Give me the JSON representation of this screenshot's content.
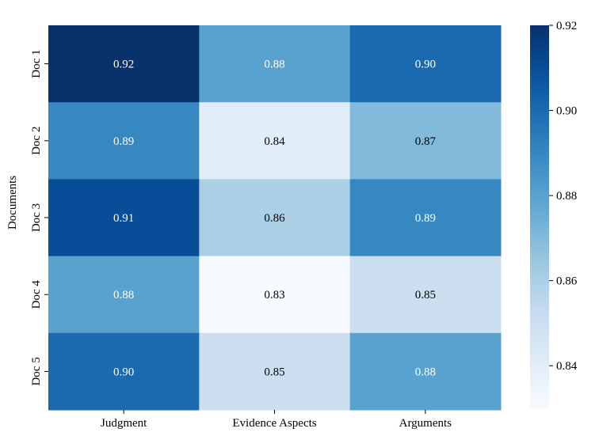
{
  "chart_data": {
    "type": "heatmap",
    "title": "",
    "xlabel": "",
    "ylabel": "Documents",
    "columns": [
      "Judgment",
      "Evidence Aspects",
      "Arguments"
    ],
    "rows": [
      "Doc 1",
      "Doc 2",
      "Doc 3",
      "Doc 4",
      "Doc 5"
    ],
    "values": [
      [
        0.92,
        0.88,
        0.9
      ],
      [
        0.89,
        0.84,
        0.87
      ],
      [
        0.91,
        0.86,
        0.89
      ],
      [
        0.88,
        0.83,
        0.85
      ],
      [
        0.9,
        0.85,
        0.88
      ]
    ],
    "colormap": "Blues",
    "vmin": 0.83,
    "vmax": 0.92,
    "colorbar_ticks": [
      0.84,
      0.86,
      0.88,
      0.9,
      0.92
    ],
    "colorbar_tick_labels": [
      "0.84",
      "0.86",
      "0.88",
      "0.90",
      "0.92"
    ],
    "annotation_format": "0.00",
    "grid": false
  }
}
